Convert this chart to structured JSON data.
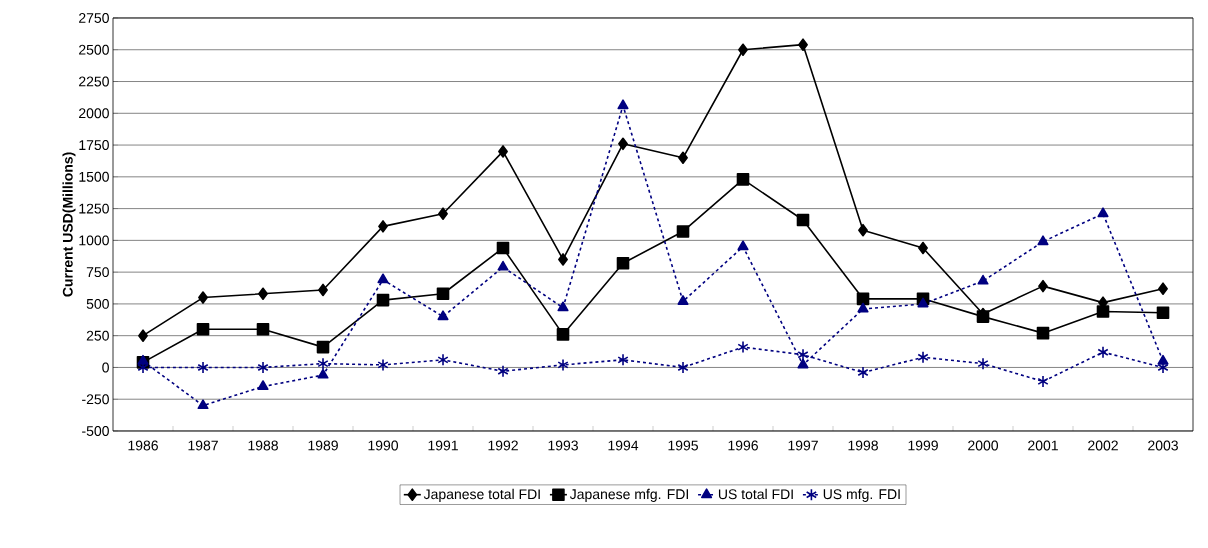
{
  "chart_data": {
    "type": "line",
    "ylabel": "Current USD(Millions)",
    "categories": [
      "1986",
      "1987",
      "1988",
      "1989",
      "1990",
      "1991",
      "1992",
      "1993",
      "1994",
      "1995",
      "1996",
      "1997",
      "1998",
      "1999",
      "2000",
      "2001",
      "2002",
      "2003"
    ],
    "ylim": [
      -500,
      2750
    ],
    "yticks": [
      -500,
      -250,
      0,
      250,
      500,
      750,
      1000,
      1250,
      1500,
      1750,
      2000,
      2250,
      2500,
      2750
    ],
    "grid": "y",
    "legend": "bottom",
    "series": [
      {
        "name": "Japanese total FDI",
        "color": "#000000",
        "marker": "diamond",
        "line_style": "solid",
        "values": [
          250,
          550,
          580,
          610,
          1110,
          1210,
          1700,
          850,
          1760,
          1650,
          2500,
          2540,
          1080,
          940,
          420,
          640,
          510,
          620
        ]
      },
      {
        "name": "Japanese mfg. FDI",
        "color": "#000000",
        "marker": "square",
        "line_style": "solid",
        "values": [
          40,
          300,
          300,
          160,
          530,
          580,
          940,
          260,
          820,
          1070,
          1480,
          1160,
          540,
          540,
          400,
          270,
          440,
          430
        ]
      },
      {
        "name": "US total FDI",
        "color": "#000080",
        "marker": "triangle",
        "line_style": "dashed",
        "values": [
          50,
          -300,
          -150,
          -60,
          690,
          400,
          790,
          470,
          2060,
          520,
          950,
          20,
          460,
          500,
          680,
          990,
          1210,
          50
        ]
      },
      {
        "name": "US mfg. FDI",
        "color": "#000080",
        "marker": "cross",
        "line_style": "dashed",
        "values": [
          0,
          0,
          0,
          30,
          20,
          60,
          -30,
          20,
          60,
          0,
          160,
          100,
          -40,
          80,
          30,
          -110,
          120,
          0
        ]
      }
    ]
  }
}
